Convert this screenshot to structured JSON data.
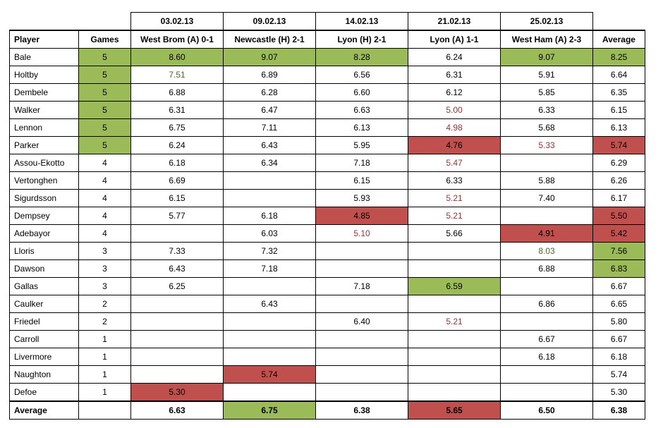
{
  "colors": {
    "good_fill": "#9bbb59",
    "bad_fill": "#c0504d",
    "good_text": "#4f6228",
    "bad_text": "#943634"
  },
  "headers": {
    "player": "Player",
    "games": "Games",
    "average": "Average",
    "matches": [
      {
        "date": "03.02.13",
        "label": "West Brom (A) 0-1"
      },
      {
        "date": "09.02.13",
        "label": "Newcastle (H) 2-1"
      },
      {
        "date": "14.02.13",
        "label": "Lyon (H) 2-1"
      },
      {
        "date": "21.02.13",
        "label": "Lyon (A) 1-1"
      },
      {
        "date": "25.02.13",
        "label": "West Ham (A) 2-3"
      }
    ]
  },
  "rows": [
    {
      "player": "Bale",
      "games": "5",
      "games_style": "green",
      "scores": [
        {
          "v": "8.60",
          "s": "green"
        },
        {
          "v": "9.07",
          "s": "green"
        },
        {
          "v": "8.28",
          "s": "green"
        },
        {
          "v": "6.24",
          "s": ""
        },
        {
          "v": "9.07",
          "s": "green"
        }
      ],
      "average": {
        "v": "8.25",
        "s": "green"
      }
    },
    {
      "player": "Holtby",
      "games": "5",
      "games_style": "green",
      "scores": [
        {
          "v": "7.51",
          "s": "t-green"
        },
        {
          "v": "6.89",
          "s": ""
        },
        {
          "v": "6.56",
          "s": ""
        },
        {
          "v": "6.31",
          "s": ""
        },
        {
          "v": "5.91",
          "s": ""
        }
      ],
      "average": {
        "v": "6.64",
        "s": ""
      }
    },
    {
      "player": "Dembele",
      "games": "5",
      "games_style": "green",
      "scores": [
        {
          "v": "6.88",
          "s": ""
        },
        {
          "v": "6.28",
          "s": ""
        },
        {
          "v": "6.60",
          "s": ""
        },
        {
          "v": "6.12",
          "s": ""
        },
        {
          "v": "5.85",
          "s": ""
        }
      ],
      "average": {
        "v": "6.35",
        "s": ""
      }
    },
    {
      "player": "Walker",
      "games": "5",
      "games_style": "green",
      "scores": [
        {
          "v": "6.31",
          "s": ""
        },
        {
          "v": "6.47",
          "s": ""
        },
        {
          "v": "6.63",
          "s": ""
        },
        {
          "v": "5.00",
          "s": "t-red"
        },
        {
          "v": "6.33",
          "s": ""
        }
      ],
      "average": {
        "v": "6.15",
        "s": ""
      }
    },
    {
      "player": "Lennon",
      "games": "5",
      "games_style": "green",
      "scores": [
        {
          "v": "6.75",
          "s": ""
        },
        {
          "v": "7.11",
          "s": ""
        },
        {
          "v": "6.13",
          "s": ""
        },
        {
          "v": "4.98",
          "s": "t-red"
        },
        {
          "v": "5.68",
          "s": ""
        }
      ],
      "average": {
        "v": "6.13",
        "s": ""
      }
    },
    {
      "player": "Parker",
      "games": "5",
      "games_style": "green",
      "scores": [
        {
          "v": "6.24",
          "s": ""
        },
        {
          "v": "6.43",
          "s": ""
        },
        {
          "v": "5.95",
          "s": ""
        },
        {
          "v": "4.76",
          "s": "red"
        },
        {
          "v": "5.33",
          "s": "t-red"
        }
      ],
      "average": {
        "v": "5.74",
        "s": "red"
      }
    },
    {
      "player": "Assou-Ekotto",
      "games": "4",
      "games_style": "",
      "scores": [
        {
          "v": "6.18",
          "s": ""
        },
        {
          "v": "6.34",
          "s": ""
        },
        {
          "v": "7.18",
          "s": ""
        },
        {
          "v": "5.47",
          "s": "t-red"
        },
        {
          "v": "",
          "s": ""
        }
      ],
      "average": {
        "v": "6.29",
        "s": ""
      }
    },
    {
      "player": "Vertonghen",
      "games": "4",
      "games_style": "",
      "scores": [
        {
          "v": "6.69",
          "s": ""
        },
        {
          "v": "",
          "s": ""
        },
        {
          "v": "6.15",
          "s": ""
        },
        {
          "v": "6.33",
          "s": ""
        },
        {
          "v": "5.88",
          "s": ""
        }
      ],
      "average": {
        "v": "6.26",
        "s": ""
      }
    },
    {
      "player": "Sigurdsson",
      "games": "4",
      "games_style": "",
      "scores": [
        {
          "v": "6.15",
          "s": ""
        },
        {
          "v": "",
          "s": ""
        },
        {
          "v": "5.93",
          "s": ""
        },
        {
          "v": "5.21",
          "s": "t-red"
        },
        {
          "v": "7.40",
          "s": ""
        }
      ],
      "average": {
        "v": "6.17",
        "s": ""
      }
    },
    {
      "player": "Dempsey",
      "games": "4",
      "games_style": "",
      "scores": [
        {
          "v": "5.77",
          "s": ""
        },
        {
          "v": "6.18",
          "s": ""
        },
        {
          "v": "4.85",
          "s": "red"
        },
        {
          "v": "5.21",
          "s": "t-red"
        },
        {
          "v": "",
          "s": ""
        }
      ],
      "average": {
        "v": "5.50",
        "s": "red"
      }
    },
    {
      "player": "Adebayor",
      "games": "4",
      "games_style": "",
      "scores": [
        {
          "v": "",
          "s": ""
        },
        {
          "v": "6.03",
          "s": ""
        },
        {
          "v": "5.10",
          "s": "t-red"
        },
        {
          "v": "5.66",
          "s": ""
        },
        {
          "v": "4.91",
          "s": "red"
        }
      ],
      "average": {
        "v": "5.42",
        "s": "red"
      }
    },
    {
      "player": "Lloris",
      "games": "3",
      "games_style": "",
      "scores": [
        {
          "v": "7.33",
          "s": ""
        },
        {
          "v": "7.32",
          "s": ""
        },
        {
          "v": "",
          "s": ""
        },
        {
          "v": "",
          "s": ""
        },
        {
          "v": "8.03",
          "s": "t-green"
        }
      ],
      "average": {
        "v": "7.56",
        "s": "green"
      }
    },
    {
      "player": "Dawson",
      "games": "3",
      "games_style": "",
      "scores": [
        {
          "v": "6.43",
          "s": ""
        },
        {
          "v": "7.18",
          "s": ""
        },
        {
          "v": "",
          "s": ""
        },
        {
          "v": "",
          "s": ""
        },
        {
          "v": "6.88",
          "s": ""
        }
      ],
      "average": {
        "v": "6.83",
        "s": "green"
      }
    },
    {
      "player": "Gallas",
      "games": "3",
      "games_style": "",
      "scores": [
        {
          "v": "6.25",
          "s": ""
        },
        {
          "v": "",
          "s": ""
        },
        {
          "v": "7.18",
          "s": ""
        },
        {
          "v": "6.59",
          "s": "green"
        },
        {
          "v": "",
          "s": ""
        }
      ],
      "average": {
        "v": "6.67",
        "s": ""
      }
    },
    {
      "player": "Caulker",
      "games": "2",
      "games_style": "",
      "scores": [
        {
          "v": "",
          "s": ""
        },
        {
          "v": "6.43",
          "s": ""
        },
        {
          "v": "",
          "s": ""
        },
        {
          "v": "",
          "s": ""
        },
        {
          "v": "6.86",
          "s": ""
        }
      ],
      "average": {
        "v": "6.65",
        "s": ""
      }
    },
    {
      "player": "Friedel",
      "games": "2",
      "games_style": "",
      "scores": [
        {
          "v": "",
          "s": ""
        },
        {
          "v": "",
          "s": ""
        },
        {
          "v": "6.40",
          "s": ""
        },
        {
          "v": "5.21",
          "s": "t-red"
        },
        {
          "v": "",
          "s": ""
        }
      ],
      "average": {
        "v": "5.80",
        "s": ""
      }
    },
    {
      "player": "Carroll",
      "games": "1",
      "games_style": "",
      "scores": [
        {
          "v": "",
          "s": ""
        },
        {
          "v": "",
          "s": ""
        },
        {
          "v": "",
          "s": ""
        },
        {
          "v": "",
          "s": ""
        },
        {
          "v": "6.67",
          "s": ""
        }
      ],
      "average": {
        "v": "6.67",
        "s": ""
      }
    },
    {
      "player": "Livermore",
      "games": "1",
      "games_style": "",
      "scores": [
        {
          "v": "",
          "s": ""
        },
        {
          "v": "",
          "s": ""
        },
        {
          "v": "",
          "s": ""
        },
        {
          "v": "",
          "s": ""
        },
        {
          "v": "6.18",
          "s": ""
        }
      ],
      "average": {
        "v": "6.18",
        "s": ""
      }
    },
    {
      "player": "Naughton",
      "games": "1",
      "games_style": "",
      "scores": [
        {
          "v": "",
          "s": ""
        },
        {
          "v": "5.74",
          "s": "red"
        },
        {
          "v": "",
          "s": ""
        },
        {
          "v": "",
          "s": ""
        },
        {
          "v": "",
          "s": ""
        }
      ],
      "average": {
        "v": "5.74",
        "s": ""
      }
    },
    {
      "player": "Defoe",
      "games": "1",
      "games_style": "",
      "scores": [
        {
          "v": "5.30",
          "s": "red"
        },
        {
          "v": "",
          "s": ""
        },
        {
          "v": "",
          "s": ""
        },
        {
          "v": "",
          "s": ""
        },
        {
          "v": "",
          "s": ""
        }
      ],
      "average": {
        "v": "5.30",
        "s": ""
      }
    }
  ],
  "totals": {
    "label": "Average",
    "games": "",
    "scores": [
      {
        "v": "6.63",
        "s": ""
      },
      {
        "v": "6.75",
        "s": "green"
      },
      {
        "v": "6.38",
        "s": ""
      },
      {
        "v": "5.65",
        "s": "red"
      },
      {
        "v": "6.50",
        "s": ""
      }
    ],
    "average": {
      "v": "6.38",
      "s": ""
    }
  }
}
